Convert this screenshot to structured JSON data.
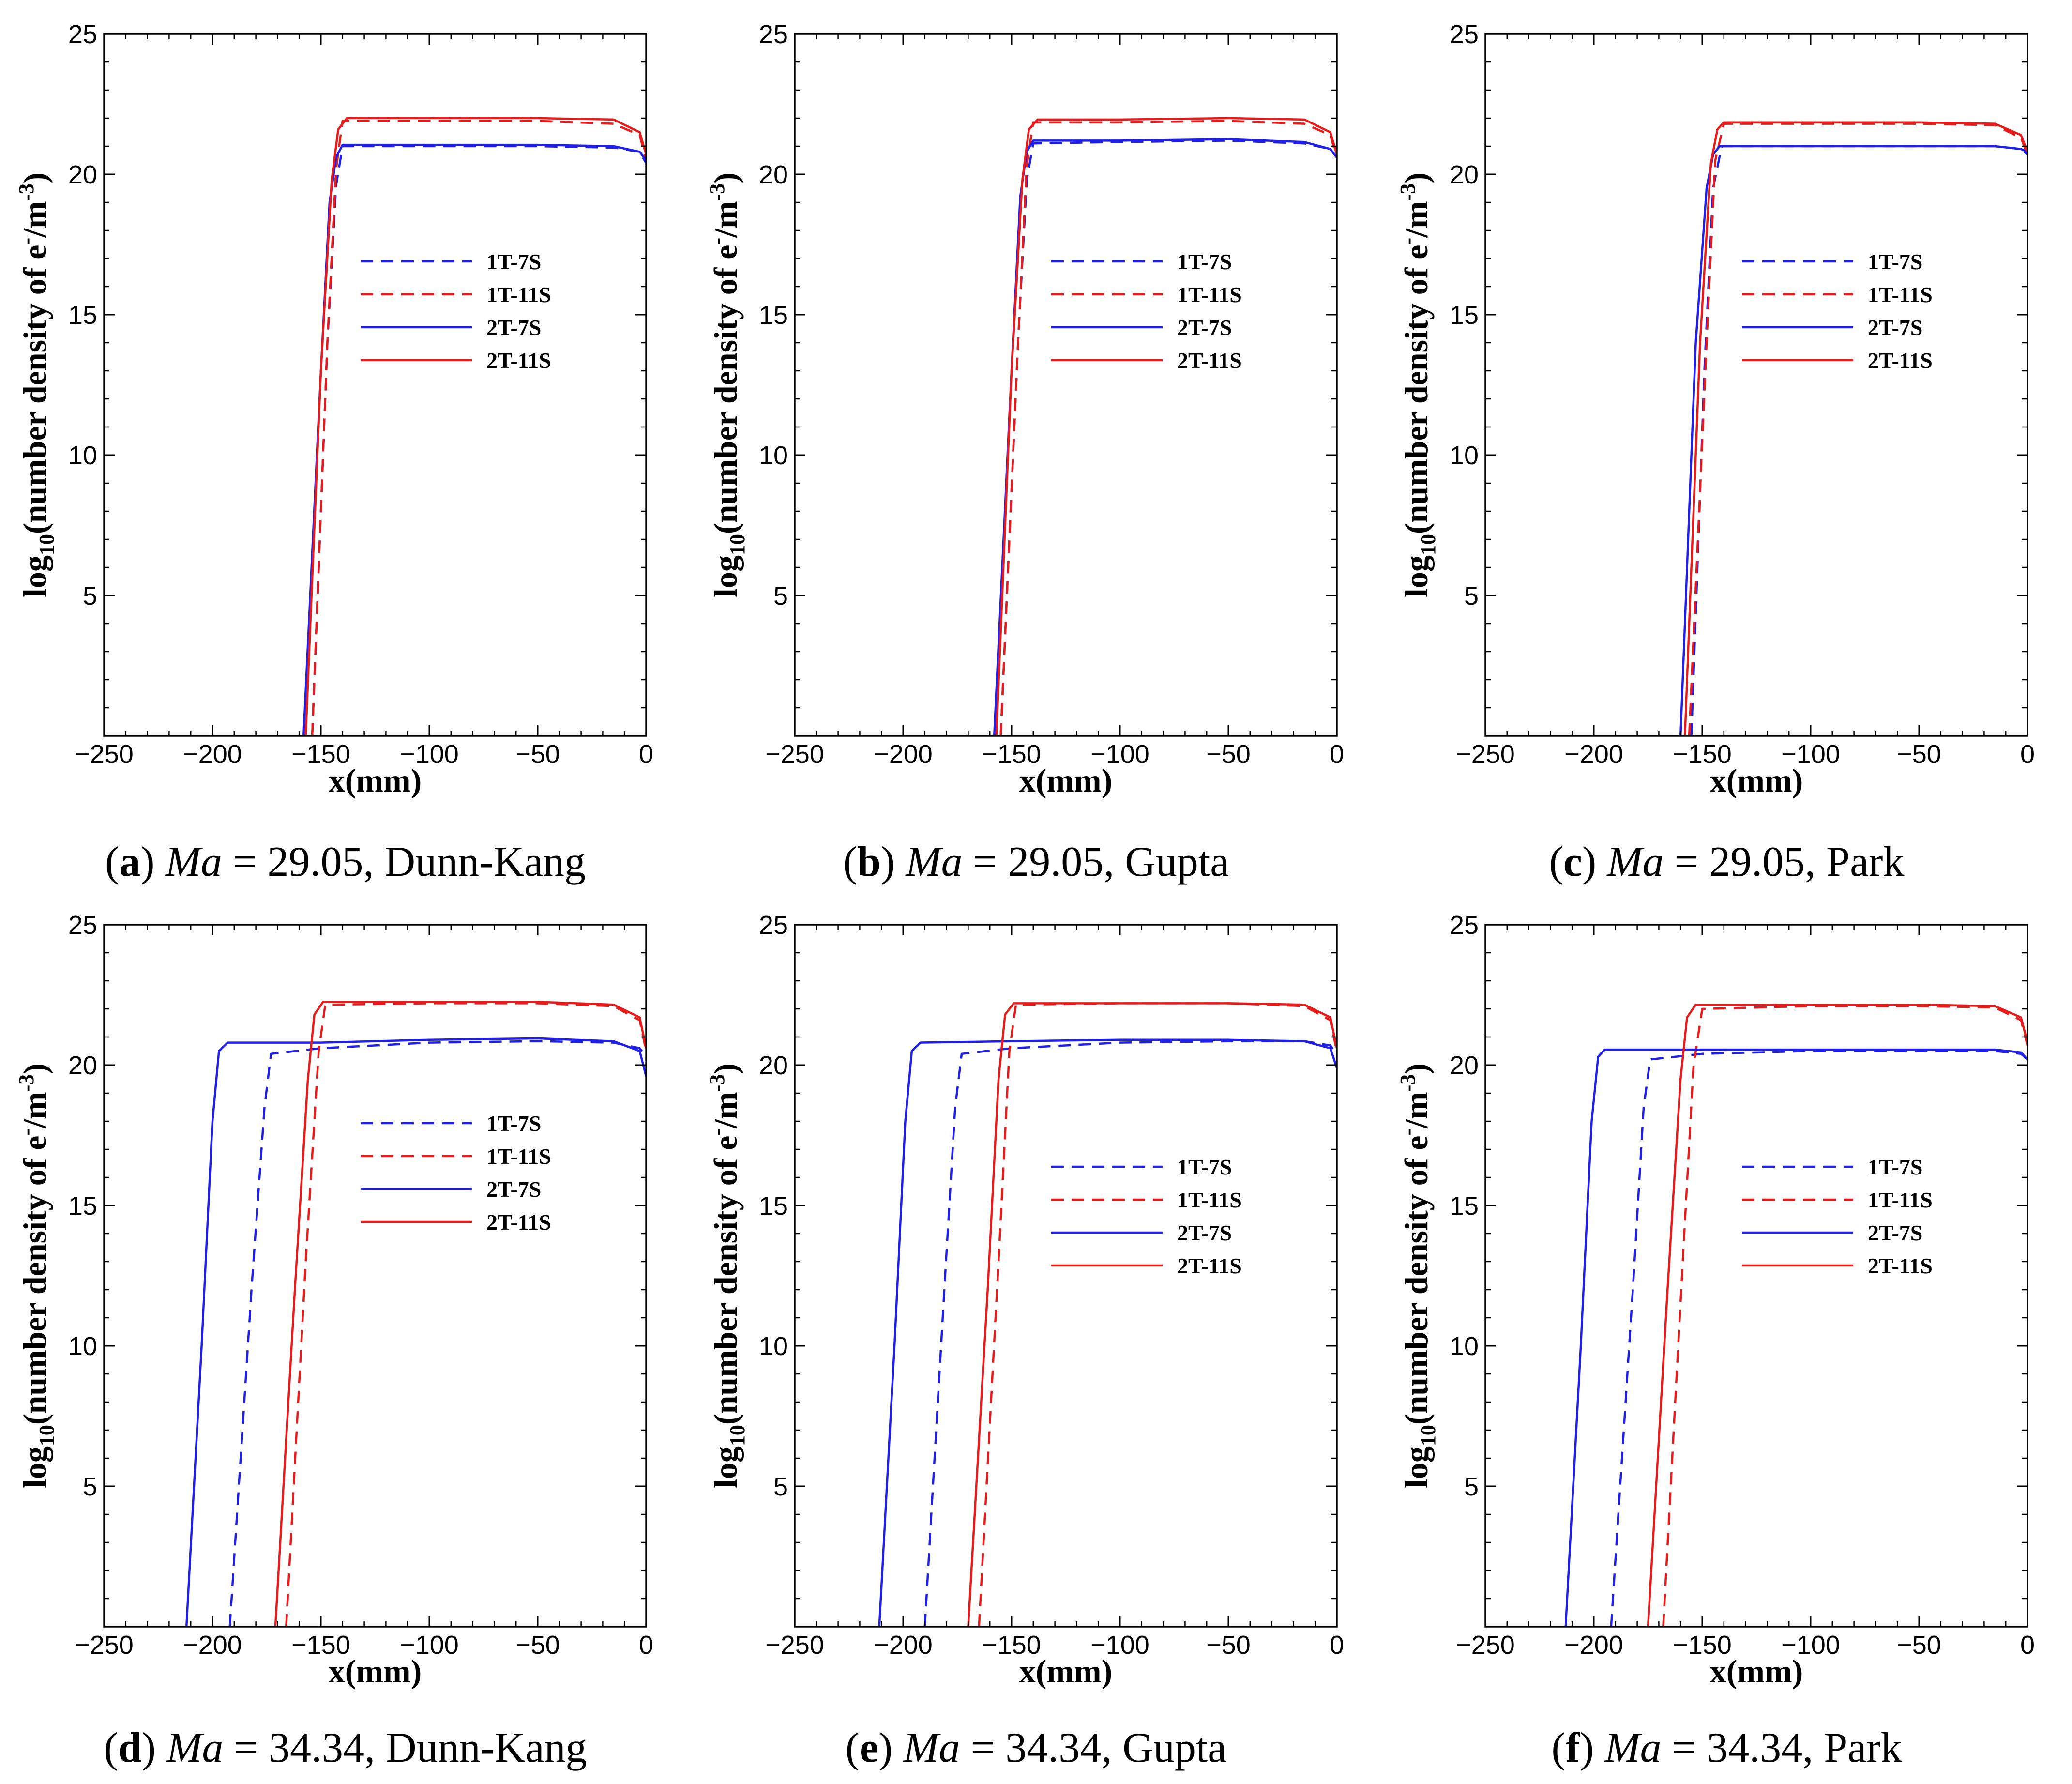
{
  "figure": {
    "panels": [
      {
        "id": "a",
        "label": "a",
        "mach_label": "Ma",
        "mach_value": "29.05",
        "model": "Dunn-Kang"
      },
      {
        "id": "b",
        "label": "b",
        "mach_label": "Ma",
        "mach_value": "29.05",
        "model": "Gupta"
      },
      {
        "id": "c",
        "label": "c",
        "mach_label": "Ma",
        "mach_value": "29.05",
        "model": "Park"
      },
      {
        "id": "d",
        "label": "d",
        "mach_label": "Ma",
        "mach_value": "34.34",
        "model": "Dunn-Kang"
      },
      {
        "id": "e",
        "label": "e",
        "mach_label": "Ma",
        "mach_value": "34.34",
        "model": "Gupta"
      },
      {
        "id": "f",
        "label": "f",
        "mach_label": "Ma",
        "mach_value": "34.34",
        "model": "Park"
      }
    ]
  },
  "colors": {
    "blue": "#1f1fe6",
    "red": "#e61c1c",
    "axis": "#000000"
  },
  "chart_data": [
    {
      "type": "line",
      "title": "(a) Ma = 29.05, Dunn-Kang",
      "xlabel": "x(mm)",
      "ylabel_prefix": "log",
      "ylabel_sub": "10",
      "ylabel_main": "(number density of e",
      "ylabel_sup1": "-",
      "ylabel_mid": "/m",
      "ylabel_sup2": "-3",
      "ylabel_end": ")",
      "xlim": [
        -250,
        0
      ],
      "ylim": [
        0,
        25
      ],
      "xticks": [
        -250,
        -200,
        -150,
        -100,
        -50,
        0
      ],
      "yticks": [
        5,
        10,
        15,
        20,
        25
      ],
      "legend_position": "center-right",
      "series": [
        {
          "name": "1T-7S",
          "color": "blue",
          "style": "dashed",
          "x": [
            -154,
            -147,
            -143,
            -140,
            -100,
            -50,
            -15,
            -3,
            0
          ],
          "y": [
            0,
            14,
            19.6,
            21.0,
            21.0,
            21.0,
            20.95,
            20.8,
            20.4
          ]
        },
        {
          "name": "1T-11S",
          "color": "red",
          "style": "dashed",
          "x": [
            -154,
            -147,
            -143,
            -140,
            -100,
            -50,
            -15,
            -3,
            0
          ],
          "y": [
            0,
            14,
            20.2,
            21.9,
            21.9,
            21.9,
            21.8,
            21.4,
            20.5
          ]
        },
        {
          "name": "2T-7S",
          "color": "blue",
          "style": "solid",
          "x": [
            -158,
            -150,
            -146,
            -143,
            -140,
            -100,
            -50,
            -15,
            -3,
            0
          ],
          "y": [
            0,
            13,
            19.0,
            20.6,
            21.05,
            21.05,
            21.05,
            21.0,
            20.8,
            20.5
          ]
        },
        {
          "name": "2T-11S",
          "color": "red",
          "style": "solid",
          "x": [
            -157,
            -150,
            -145,
            -142,
            -138,
            -100,
            -50,
            -15,
            -3,
            0
          ],
          "y": [
            0,
            13,
            19.8,
            21.6,
            22.0,
            22.0,
            22.0,
            21.95,
            21.5,
            20.7
          ]
        }
      ]
    },
    {
      "type": "line",
      "title": "(b) Ma = 29.05, Gupta",
      "xlabel": "x(mm)",
      "ylabel_prefix": "log",
      "ylabel_sub": "10",
      "ylabel_main": "(number density of e",
      "ylabel_sup1": "-",
      "ylabel_mid": "/m",
      "ylabel_sup2": "-3",
      "ylabel_end": ")",
      "xlim": [
        -250,
        0
      ],
      "ylim": [
        0,
        25
      ],
      "xticks": [
        -250,
        -200,
        -150,
        -100,
        -50,
        0
      ],
      "yticks": [
        5,
        10,
        15,
        20,
        25
      ],
      "legend_position": "center-right",
      "series": [
        {
          "name": "1T-7S",
          "color": "blue",
          "style": "dashed",
          "x": [
            -155,
            -147,
            -143,
            -140,
            -100,
            -50,
            -15,
            -3,
            0
          ],
          "y": [
            0,
            14,
            19.8,
            21.1,
            21.15,
            21.2,
            21.1,
            20.9,
            20.6
          ]
        },
        {
          "name": "1T-11S",
          "color": "red",
          "style": "dashed",
          "x": [
            -155,
            -147,
            -143,
            -140,
            -100,
            -50,
            -15,
            -3,
            0
          ],
          "y": [
            0,
            14,
            20.3,
            21.85,
            21.85,
            21.9,
            21.8,
            21.4,
            20.6
          ]
        },
        {
          "name": "2T-7S",
          "color": "blue",
          "style": "solid",
          "x": [
            -158,
            -150,
            -146,
            -143,
            -140,
            -100,
            -50,
            -15,
            -3,
            0
          ],
          "y": [
            0,
            13,
            19.2,
            20.8,
            21.2,
            21.2,
            21.25,
            21.15,
            20.9,
            20.6
          ]
        },
        {
          "name": "2T-11S",
          "color": "red",
          "style": "solid",
          "x": [
            -157,
            -150,
            -145,
            -142,
            -138,
            -100,
            -50,
            -15,
            -3,
            0
          ],
          "y": [
            0,
            13,
            19.8,
            21.6,
            21.95,
            21.95,
            22.0,
            21.95,
            21.5,
            20.7
          ]
        }
      ]
    },
    {
      "type": "line",
      "title": "(c) Ma = 29.05, Park",
      "xlabel": "x(mm)",
      "ylabel_prefix": "log",
      "ylabel_sub": "10",
      "ylabel_main": "(number density of e",
      "ylabel_sup1": "-",
      "ylabel_mid": "/m",
      "ylabel_sup2": "-3",
      "ylabel_end": ")",
      "xlim": [
        -250,
        0
      ],
      "ylim": [
        0,
        25
      ],
      "xticks": [
        -250,
        -200,
        -150,
        -100,
        -50,
        0
      ],
      "yticks": [
        5,
        10,
        15,
        20,
        25
      ],
      "legend_position": "center-right",
      "series": [
        {
          "name": "1T-7S",
          "color": "blue",
          "style": "dashed",
          "x": [
            -155,
            -149,
            -145,
            -141,
            -100,
            -50,
            -15,
            -3,
            0
          ],
          "y": [
            0,
            13,
            19.5,
            21.0,
            21.0,
            21.0,
            21.0,
            20.9,
            20.7
          ]
        },
        {
          "name": "1T-11S",
          "color": "red",
          "style": "dashed",
          "x": [
            -156,
            -148,
            -144,
            -140,
            -100,
            -50,
            -15,
            -3,
            0
          ],
          "y": [
            0,
            14,
            20.5,
            21.8,
            21.8,
            21.8,
            21.75,
            21.3,
            20.7
          ]
        },
        {
          "name": "2T-7S",
          "color": "blue",
          "style": "solid",
          "x": [
            -160,
            -153,
            -148,
            -145,
            -142,
            -100,
            -50,
            -15,
            -3,
            0
          ],
          "y": [
            0,
            14,
            19.5,
            20.7,
            21.0,
            21.0,
            21.0,
            21.0,
            20.9,
            20.8
          ]
        },
        {
          "name": "2T-11S",
          "color": "red",
          "style": "solid",
          "x": [
            -158,
            -151,
            -146,
            -143,
            -140,
            -100,
            -50,
            -15,
            -3,
            0
          ],
          "y": [
            0,
            14,
            20.4,
            21.6,
            21.85,
            21.85,
            21.85,
            21.8,
            21.4,
            20.8
          ]
        }
      ]
    },
    {
      "type": "line",
      "title": "(d) Ma = 34.34, Dunn-Kang",
      "xlabel": "x(mm)",
      "ylabel_prefix": "log",
      "ylabel_sub": "10",
      "ylabel_main": "(number density of e",
      "ylabel_sup1": "-",
      "ylabel_mid": "/m",
      "ylabel_sup2": "-3",
      "ylabel_end": ")",
      "xlim": [
        -250,
        0
      ],
      "ylim": [
        0,
        25
      ],
      "xticks": [
        -250,
        -200,
        -150,
        -100,
        -50,
        0
      ],
      "yticks": [
        5,
        10,
        15,
        20,
        25
      ],
      "legend_position": "center-right",
      "series": [
        {
          "name": "1T-7S",
          "color": "blue",
          "style": "dashed",
          "x": [
            -192,
            -182,
            -176,
            -173,
            -150,
            -100,
            -50,
            -15,
            -3,
            0
          ],
          "y": [
            0,
            12,
            18.5,
            20.4,
            20.6,
            20.8,
            20.85,
            20.8,
            20.6,
            20.3
          ]
        },
        {
          "name": "1T-11S",
          "color": "red",
          "style": "dashed",
          "x": [
            -166,
            -157,
            -151,
            -148,
            -100,
            -50,
            -15,
            -3,
            0
          ],
          "y": [
            0,
            13,
            20.5,
            22.15,
            22.2,
            22.2,
            22.1,
            21.6,
            20.5
          ]
        },
        {
          "name": "2T-7S",
          "color": "blue",
          "style": "solid",
          "x": [
            -212,
            -205,
            -200,
            -197,
            -193,
            -150,
            -100,
            -50,
            -15,
            -3,
            0
          ],
          "y": [
            0,
            10,
            18.0,
            20.5,
            20.8,
            20.8,
            20.9,
            20.95,
            20.85,
            20.5,
            19.6
          ]
        },
        {
          "name": "2T-11S",
          "color": "red",
          "style": "solid",
          "x": [
            -171,
            -162,
            -156,
            -153,
            -149,
            -100,
            -50,
            -15,
            -3,
            0
          ],
          "y": [
            0,
            12,
            19.5,
            21.8,
            22.25,
            22.25,
            22.25,
            22.15,
            21.7,
            20.6
          ]
        }
      ]
    },
    {
      "type": "line",
      "title": "(e) Ma = 34.34, Gupta",
      "xlabel": "x(mm)",
      "ylabel_prefix": "log",
      "ylabel_sub": "10",
      "ylabel_main": "(number density of e",
      "ylabel_sup1": "-",
      "ylabel_mid": "/m",
      "ylabel_sup2": "-3",
      "ylabel_end": ")",
      "xlim": [
        -250,
        0
      ],
      "ylim": [
        0,
        25
      ],
      "xticks": [
        -250,
        -200,
        -150,
        -100,
        -50,
        0
      ],
      "yticks": [
        5,
        10,
        15,
        20,
        25
      ],
      "legend_position": "center-right",
      "series": [
        {
          "name": "1T-7S",
          "color": "blue",
          "style": "dashed",
          "x": [
            -190,
            -181,
            -176,
            -173,
            -150,
            -100,
            -50,
            -15,
            -3,
            0
          ],
          "y": [
            0,
            12,
            18.5,
            20.4,
            20.6,
            20.8,
            20.85,
            20.85,
            20.7,
            20.4
          ]
        },
        {
          "name": "1T-11S",
          "color": "red",
          "style": "dashed",
          "x": [
            -165,
            -156,
            -151,
            -148,
            -100,
            -50,
            -15,
            -3,
            0
          ],
          "y": [
            0,
            13,
            20.5,
            22.15,
            22.2,
            22.2,
            22.1,
            21.6,
            20.5
          ]
        },
        {
          "name": "2T-7S",
          "color": "blue",
          "style": "solid",
          "x": [
            -211,
            -204,
            -199,
            -196,
            -192,
            -150,
            -100,
            -50,
            -15,
            -3,
            0
          ],
          "y": [
            0,
            10,
            18.0,
            20.5,
            20.8,
            20.85,
            20.9,
            20.9,
            20.85,
            20.6,
            19.9
          ]
        },
        {
          "name": "2T-11S",
          "color": "red",
          "style": "solid",
          "x": [
            -170,
            -161,
            -156,
            -153,
            -149,
            -100,
            -50,
            -15,
            -3,
            0
          ],
          "y": [
            0,
            12,
            19.5,
            21.8,
            22.2,
            22.2,
            22.2,
            22.15,
            21.7,
            20.6
          ]
        }
      ]
    },
    {
      "type": "line",
      "title": "(f) Ma = 34.34, Park",
      "xlabel": "x(mm)",
      "ylabel_prefix": "log",
      "ylabel_sub": "10",
      "ylabel_main": "(number density of e",
      "ylabel_sup1": "-",
      "ylabel_mid": "/m",
      "ylabel_sup2": "-3",
      "ylabel_end": ")",
      "xlim": [
        -250,
        0
      ],
      "ylim": [
        0,
        25
      ],
      "xticks": [
        -250,
        -200,
        -150,
        -100,
        -50,
        0
      ],
      "yticks": [
        5,
        10,
        15,
        20,
        25
      ],
      "legend_position": "center-right",
      "series": [
        {
          "name": "1T-7S",
          "color": "blue",
          "style": "dashed",
          "x": [
            -192,
            -182,
            -177,
            -174,
            -150,
            -100,
            -50,
            -15,
            -3,
            0
          ],
          "y": [
            0,
            12,
            18.5,
            20.2,
            20.4,
            20.5,
            20.5,
            20.5,
            20.4,
            20.2
          ]
        },
        {
          "name": "1T-11S",
          "color": "red",
          "style": "dashed",
          "x": [
            -168,
            -159,
            -154,
            -150,
            -100,
            -50,
            -15,
            -3,
            0
          ],
          "y": [
            0,
            13,
            20.0,
            22.0,
            22.1,
            22.1,
            22.05,
            21.6,
            20.7
          ]
        },
        {
          "name": "2T-7S",
          "color": "blue",
          "style": "solid",
          "x": [
            -213,
            -206,
            -201,
            -198,
            -195,
            -150,
            -100,
            -50,
            -15,
            -3,
            0
          ],
          "y": [
            0,
            10,
            18.0,
            20.3,
            20.55,
            20.55,
            20.55,
            20.55,
            20.55,
            20.45,
            20.2
          ]
        },
        {
          "name": "2T-11S",
          "color": "red",
          "style": "solid",
          "x": [
            -175,
            -166,
            -160,
            -157,
            -153,
            -100,
            -50,
            -15,
            -3,
            0
          ],
          "y": [
            0,
            12,
            19.5,
            21.7,
            22.15,
            22.15,
            22.15,
            22.1,
            21.7,
            20.8
          ]
        }
      ]
    }
  ]
}
